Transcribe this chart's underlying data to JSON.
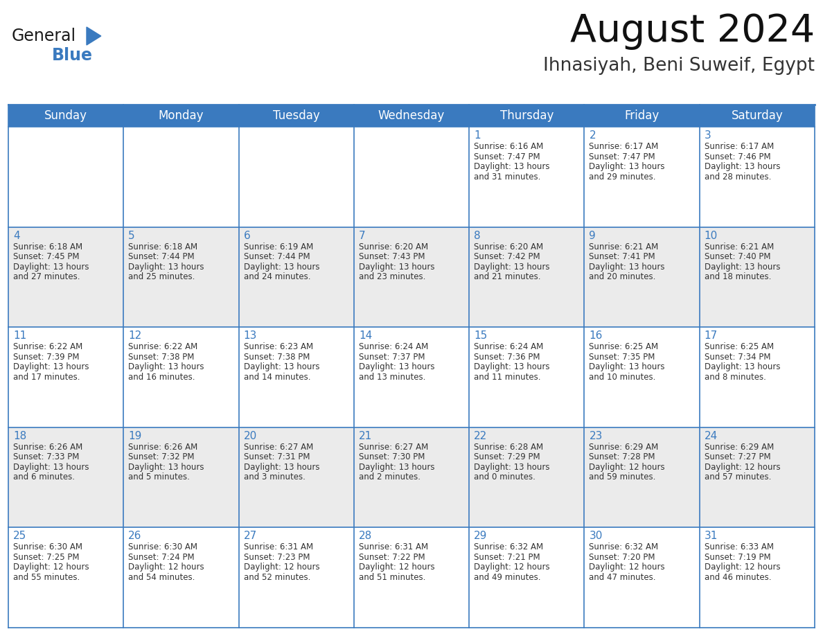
{
  "title": "August 2024",
  "subtitle": "Ihnasiyah, Beni Suweif, Egypt",
  "header_bg_color": "#3a7abf",
  "header_text_color": "#ffffff",
  "row_colors": [
    "#ffffff",
    "#ebebeb"
  ],
  "border_color": "#3a7abf",
  "day_number_color": "#3a7abf",
  "cell_text_color": "#333333",
  "days_of_week": [
    "Sunday",
    "Monday",
    "Tuesday",
    "Wednesday",
    "Thursday",
    "Friday",
    "Saturday"
  ],
  "weeks": [
    [
      {
        "day": null
      },
      {
        "day": null
      },
      {
        "day": null
      },
      {
        "day": null
      },
      {
        "day": "1",
        "sunrise": "6:16 AM",
        "sunset": "7:47 PM",
        "daylight": "13 hours and 31 minutes."
      },
      {
        "day": "2",
        "sunrise": "6:17 AM",
        "sunset": "7:47 PM",
        "daylight": "13 hours and 29 minutes."
      },
      {
        "day": "3",
        "sunrise": "6:17 AM",
        "sunset": "7:46 PM",
        "daylight": "13 hours and 28 minutes."
      }
    ],
    [
      {
        "day": "4",
        "sunrise": "6:18 AM",
        "sunset": "7:45 PM",
        "daylight": "13 hours and 27 minutes."
      },
      {
        "day": "5",
        "sunrise": "6:18 AM",
        "sunset": "7:44 PM",
        "daylight": "13 hours and 25 minutes."
      },
      {
        "day": "6",
        "sunrise": "6:19 AM",
        "sunset": "7:44 PM",
        "daylight": "13 hours and 24 minutes."
      },
      {
        "day": "7",
        "sunrise": "6:20 AM",
        "sunset": "7:43 PM",
        "daylight": "13 hours and 23 minutes."
      },
      {
        "day": "8",
        "sunrise": "6:20 AM",
        "sunset": "7:42 PM",
        "daylight": "13 hours and 21 minutes."
      },
      {
        "day": "9",
        "sunrise": "6:21 AM",
        "sunset": "7:41 PM",
        "daylight": "13 hours and 20 minutes."
      },
      {
        "day": "10",
        "sunrise": "6:21 AM",
        "sunset": "7:40 PM",
        "daylight": "13 hours and 18 minutes."
      }
    ],
    [
      {
        "day": "11",
        "sunrise": "6:22 AM",
        "sunset": "7:39 PM",
        "daylight": "13 hours and 17 minutes."
      },
      {
        "day": "12",
        "sunrise": "6:22 AM",
        "sunset": "7:38 PM",
        "daylight": "13 hours and 16 minutes."
      },
      {
        "day": "13",
        "sunrise": "6:23 AM",
        "sunset": "7:38 PM",
        "daylight": "13 hours and 14 minutes."
      },
      {
        "day": "14",
        "sunrise": "6:24 AM",
        "sunset": "7:37 PM",
        "daylight": "13 hours and 13 minutes."
      },
      {
        "day": "15",
        "sunrise": "6:24 AM",
        "sunset": "7:36 PM",
        "daylight": "13 hours and 11 minutes."
      },
      {
        "day": "16",
        "sunrise": "6:25 AM",
        "sunset": "7:35 PM",
        "daylight": "13 hours and 10 minutes."
      },
      {
        "day": "17",
        "sunrise": "6:25 AM",
        "sunset": "7:34 PM",
        "daylight": "13 hours and 8 minutes."
      }
    ],
    [
      {
        "day": "18",
        "sunrise": "6:26 AM",
        "sunset": "7:33 PM",
        "daylight": "13 hours and 6 minutes."
      },
      {
        "day": "19",
        "sunrise": "6:26 AM",
        "sunset": "7:32 PM",
        "daylight": "13 hours and 5 minutes."
      },
      {
        "day": "20",
        "sunrise": "6:27 AM",
        "sunset": "7:31 PM",
        "daylight": "13 hours and 3 minutes."
      },
      {
        "day": "21",
        "sunrise": "6:27 AM",
        "sunset": "7:30 PM",
        "daylight": "13 hours and 2 minutes."
      },
      {
        "day": "22",
        "sunrise": "6:28 AM",
        "sunset": "7:29 PM",
        "daylight": "13 hours and 0 minutes."
      },
      {
        "day": "23",
        "sunrise": "6:29 AM",
        "sunset": "7:28 PM",
        "daylight": "12 hours and 59 minutes."
      },
      {
        "day": "24",
        "sunrise": "6:29 AM",
        "sunset": "7:27 PM",
        "daylight": "12 hours and 57 minutes."
      }
    ],
    [
      {
        "day": "25",
        "sunrise": "6:30 AM",
        "sunset": "7:25 PM",
        "daylight": "12 hours and 55 minutes."
      },
      {
        "day": "26",
        "sunrise": "6:30 AM",
        "sunset": "7:24 PM",
        "daylight": "12 hours and 54 minutes."
      },
      {
        "day": "27",
        "sunrise": "6:31 AM",
        "sunset": "7:23 PM",
        "daylight": "12 hours and 52 minutes."
      },
      {
        "day": "28",
        "sunrise": "6:31 AM",
        "sunset": "7:22 PM",
        "daylight": "12 hours and 51 minutes."
      },
      {
        "day": "29",
        "sunrise": "6:32 AM",
        "sunset": "7:21 PM",
        "daylight": "12 hours and 49 minutes."
      },
      {
        "day": "30",
        "sunrise": "6:32 AM",
        "sunset": "7:20 PM",
        "daylight": "12 hours and 47 minutes."
      },
      {
        "day": "31",
        "sunrise": "6:33 AM",
        "sunset": "7:19 PM",
        "daylight": "12 hours and 46 minutes."
      }
    ]
  ],
  "logo_color_general": "#1a1a1a",
  "logo_color_blue": "#3a7abf",
  "logo_triangle_color": "#3a7abf",
  "title_color": "#111111",
  "subtitle_color": "#333333"
}
